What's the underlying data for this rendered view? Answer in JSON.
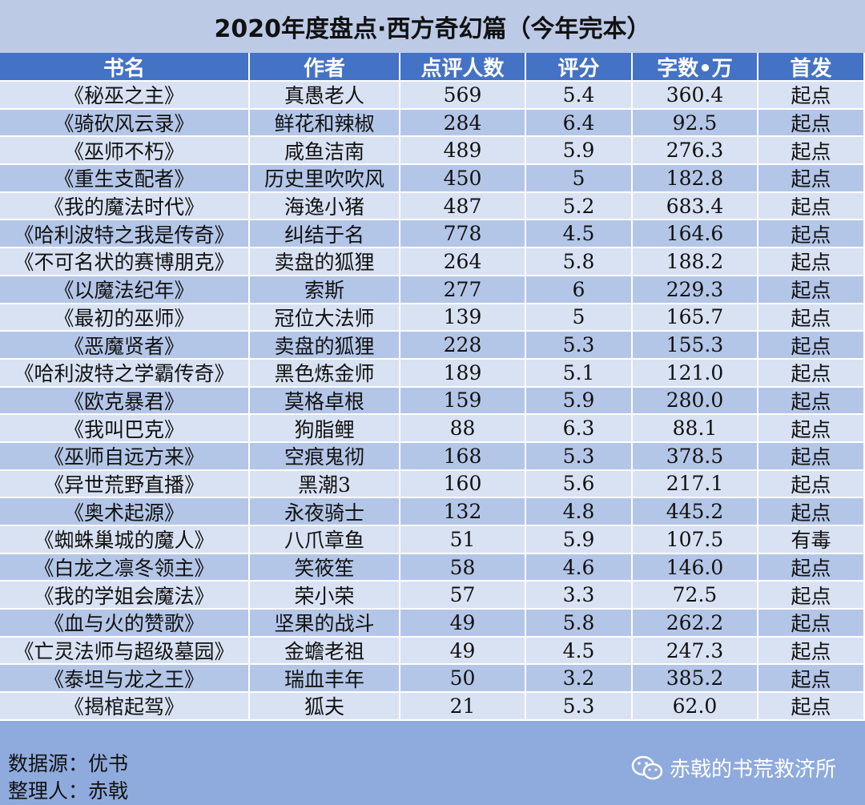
{
  "title": "2020年度盘点·西方奇幻篇（今年完本）",
  "table": {
    "header": [
      "书名",
      "作者",
      "点评人数",
      "评分",
      "字数•万",
      "首发"
    ],
    "rows": [
      [
        "《秘巫之主》",
        "真愚老人",
        "569",
        "5.4",
        "360.4",
        "起点"
      ],
      [
        "《骑砍风云录》",
        "鲜花和辣椒",
        "284",
        "6.4",
        "92.5",
        "起点"
      ],
      [
        "《巫师不朽》",
        "咸鱼洁南",
        "489",
        "5.9",
        "276.3",
        "起点"
      ],
      [
        "《重生支配者》",
        "历史里吹吹风",
        "450",
        "5",
        "182.8",
        "起点"
      ],
      [
        "《我的魔法时代》",
        "海逸小猪",
        "487",
        "5.2",
        "683.4",
        "起点"
      ],
      [
        "《哈利波特之我是传奇》",
        "纠结于名",
        "778",
        "4.5",
        "164.6",
        "起点"
      ],
      [
        "《不可名状的赛博朋克》",
        "卖盘的狐狸",
        "264",
        "5.8",
        "188.2",
        "起点"
      ],
      [
        "《以魔法纪年》",
        "索斯",
        "277",
        "6",
        "229.3",
        "起点"
      ],
      [
        "《最初的巫师》",
        "冠位大法师",
        "139",
        "5",
        "165.7",
        "起点"
      ],
      [
        "《恶魔贤者》",
        "卖盘的狐狸",
        "228",
        "5.3",
        "155.3",
        "起点"
      ],
      [
        "《哈利波特之学霸传奇》",
        "黑色炼金师",
        "189",
        "5.1",
        "121.0",
        "起点"
      ],
      [
        "《欧克暴君》",
        "莫格卓根",
        "159",
        "5.9",
        "280.0",
        "起点"
      ],
      [
        "《我叫巴克》",
        "狗脂鲤",
        "88",
        "6.3",
        "88.1",
        "起点"
      ],
      [
        "《巫师自远方来》",
        "空痕鬼彻",
        "168",
        "5.3",
        "378.5",
        "起点"
      ],
      [
        "《异世荒野直播》",
        "黑潮3",
        "160",
        "5.6",
        "217.1",
        "起点"
      ],
      [
        "《奥术起源》",
        "永夜骑士",
        "132",
        "4.8",
        "445.2",
        "起点"
      ],
      [
        "《蜘蛛巢城的魔人》",
        "八爪章鱼",
        "51",
        "5.9",
        "107.5",
        "有毒"
      ],
      [
        "《白龙之凛冬领主》",
        "笑筱笙",
        "58",
        "4.6",
        "146.0",
        "起点"
      ],
      [
        "《我的学姐会魔法》",
        "荣小荣",
        "57",
        "3.3",
        "72.5",
        "起点"
      ],
      [
        "《血与火的赞歌》",
        "坚果的战斗",
        "49",
        "5.8",
        "262.2",
        "起点"
      ],
      [
        "《亡灵法师与超级墓园》",
        "金蟾老祖",
        "49",
        "4.5",
        "247.3",
        "起点"
      ],
      [
        "《泰坦与龙之王》",
        "瑞血丰年",
        "50",
        "3.2",
        "385.2",
        "起点"
      ],
      [
        "《揭棺起驾》",
        "狐夫",
        "21",
        "5.3",
        "62.0",
        "起点"
      ]
    ]
  },
  "footer": {
    "source": "数据源：优书",
    "compiler": "整理人：赤戟",
    "watermark": "赤戟的书荒救济所"
  }
}
